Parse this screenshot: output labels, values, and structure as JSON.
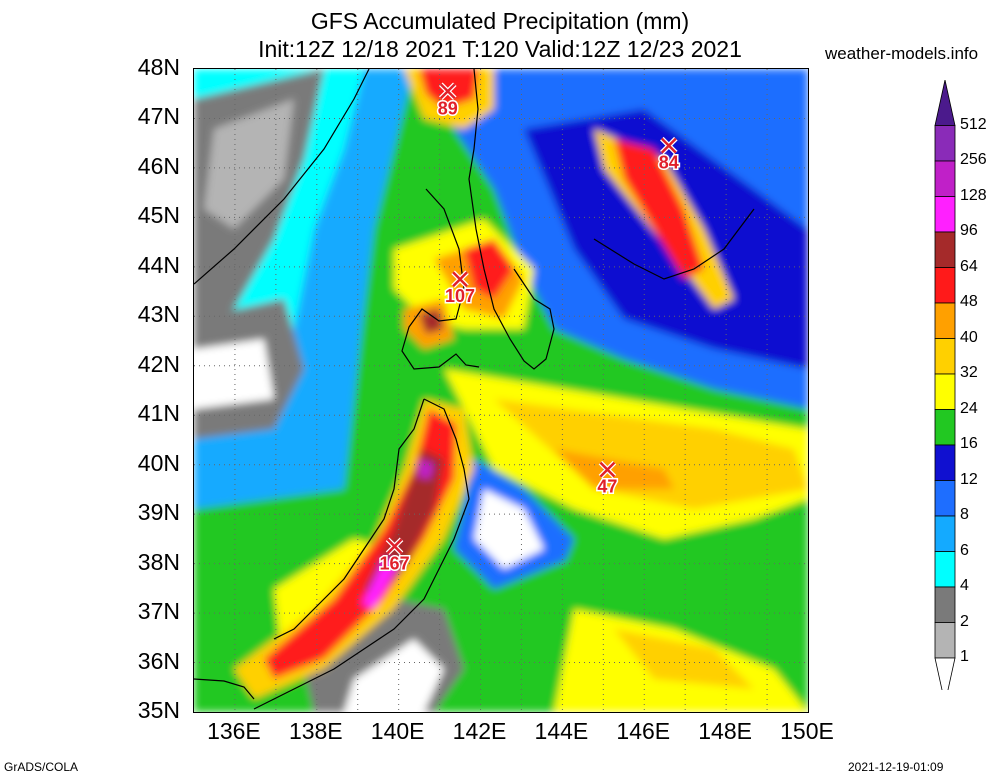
{
  "title_line1": "GFS Accumulated Precipitation (mm)",
  "title_line2": "Init:12Z 12/18 2021 T:120 Valid:12Z 12/23 2021",
  "site": "weather-models.info",
  "footer_left": "GrADS/COLA",
  "footer_right": "2021-12-19-01:09",
  "y_axis_labels": [
    "48N",
    "47N",
    "46N",
    "45N",
    "44N",
    "43N",
    "42N",
    "41N",
    "40N",
    "39N",
    "38N",
    "37N",
    "36N",
    "35N"
  ],
  "x_axis_labels": [
    "136E",
    "138E",
    "140E",
    "142E",
    "144E",
    "146E",
    "148E",
    "150E"
  ],
  "lat_range": [
    35,
    48
  ],
  "lon_range": [
    135,
    150
  ],
  "colorbar": {
    "levels": [
      "512",
      "256",
      "128",
      "96",
      "64",
      "48",
      "40",
      "32",
      "24",
      "16",
      "12",
      "8",
      "6",
      "4",
      "2",
      "1"
    ],
    "colors": [
      "#4b1a8c",
      "#8a2bb8",
      "#c020c8",
      "#ff20ff",
      "#a52a2a",
      "#ff1a1a",
      "#ffa000",
      "#ffd000",
      "#ffff00",
      "#22c822",
      "#1010d0",
      "#1e6eff",
      "#14aaff",
      "#00ffff",
      "#7a7a7a",
      "#b4b4b4",
      "#ffffff"
    ]
  },
  "maxima": [
    {
      "value": "89",
      "lon": 141.2,
      "lat": 47.55
    },
    {
      "value": "84",
      "lon": 146.6,
      "lat": 46.45
    },
    {
      "value": "107",
      "lon": 141.5,
      "lat": 43.75
    },
    {
      "value": "47",
      "lon": 145.1,
      "lat": 39.9
    },
    {
      "value": "167",
      "lon": 139.9,
      "lat": 38.35
    }
  ]
}
